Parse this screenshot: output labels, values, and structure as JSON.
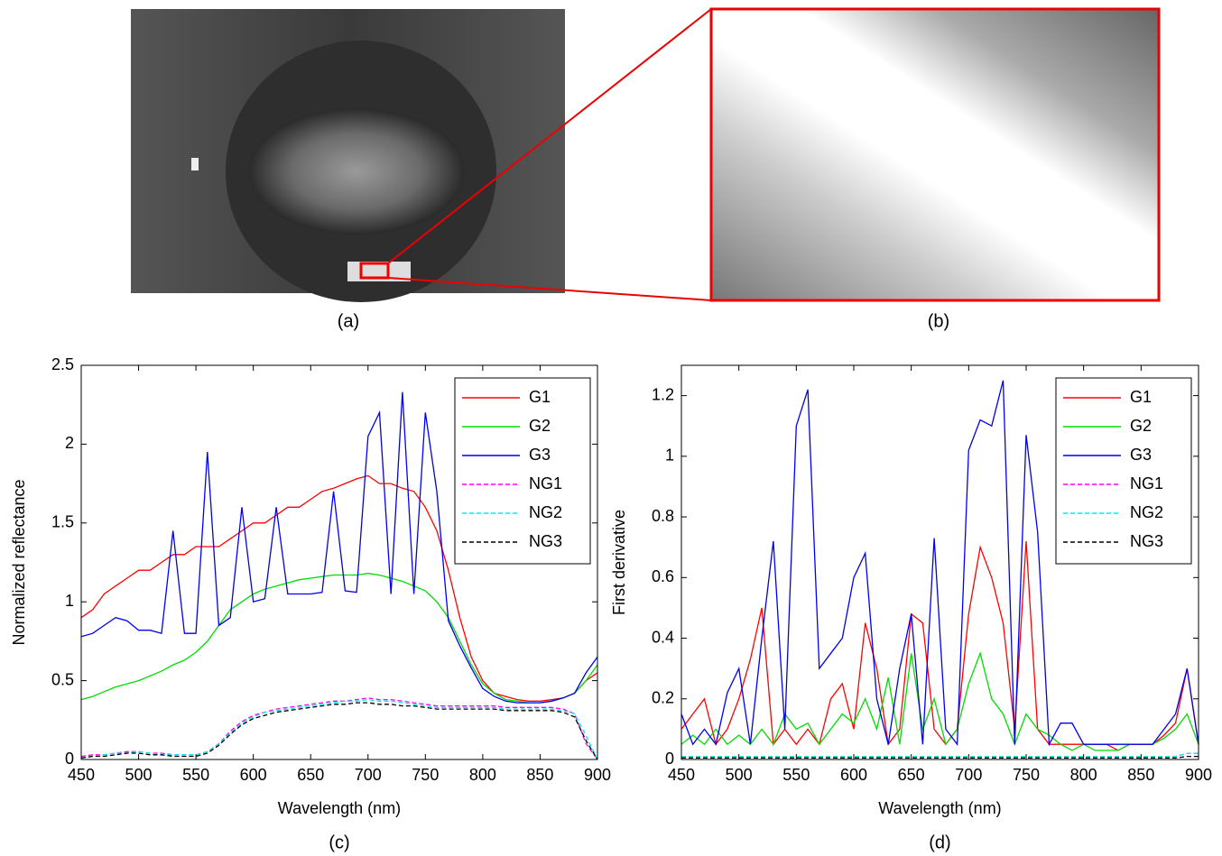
{
  "panels": [
    {
      "label": "(a)"
    },
    {
      "label": "(b)"
    }
  ],
  "chart_data": [
    {
      "type": "line",
      "caption": "(c)",
      "xlabel": "Wavelength (nm)",
      "ylabel": "Normalized reflectance",
      "xlim": [
        450,
        900
      ],
      "ylim": [
        0,
        2.5
      ],
      "xticks": [
        450,
        500,
        550,
        600,
        650,
        700,
        750,
        800,
        850,
        900
      ],
      "yticks": [
        0,
        0.5,
        1,
        1.5,
        2,
        2.5
      ],
      "legend": "upper right",
      "x": [
        450,
        460,
        470,
        480,
        490,
        500,
        510,
        520,
        530,
        540,
        550,
        560,
        570,
        580,
        590,
        600,
        610,
        620,
        630,
        640,
        650,
        660,
        670,
        680,
        690,
        700,
        710,
        720,
        730,
        740,
        750,
        760,
        770,
        780,
        790,
        800,
        810,
        820,
        830,
        840,
        850,
        860,
        870,
        880,
        890,
        900
      ],
      "series": [
        {
          "name": "G1",
          "color": "#ff0000",
          "linestyle": "solid",
          "values": [
            0.9,
            0.95,
            1.05,
            1.1,
            1.15,
            1.2,
            1.2,
            1.25,
            1.3,
            1.3,
            1.35,
            1.35,
            1.35,
            1.4,
            1.45,
            1.5,
            1.5,
            1.55,
            1.6,
            1.6,
            1.65,
            1.7,
            1.72,
            1.75,
            1.78,
            1.8,
            1.75,
            1.75,
            1.72,
            1.7,
            1.6,
            1.45,
            1.2,
            0.9,
            0.65,
            0.5,
            0.42,
            0.4,
            0.38,
            0.37,
            0.37,
            0.38,
            0.39,
            0.42,
            0.5,
            0.55
          ]
        },
        {
          "name": "G2",
          "color": "#00dd00",
          "linestyle": "solid",
          "values": [
            0.38,
            0.4,
            0.43,
            0.46,
            0.48,
            0.5,
            0.53,
            0.56,
            0.6,
            0.63,
            0.68,
            0.75,
            0.85,
            0.95,
            1.0,
            1.05,
            1.08,
            1.1,
            1.12,
            1.14,
            1.15,
            1.16,
            1.17,
            1.17,
            1.17,
            1.18,
            1.17,
            1.15,
            1.13,
            1.1,
            1.07,
            1.0,
            0.9,
            0.75,
            0.6,
            0.48,
            0.42,
            0.38,
            0.37,
            0.36,
            0.36,
            0.37,
            0.39,
            0.42,
            0.5,
            0.6
          ]
        },
        {
          "name": "G3",
          "color": "#0000ee",
          "linestyle": "solid",
          "values": [
            0.78,
            0.8,
            0.85,
            0.9,
            0.88,
            0.82,
            0.82,
            0.8,
            1.45,
            0.8,
            0.8,
            1.95,
            0.85,
            0.9,
            1.6,
            1.0,
            1.02,
            1.6,
            1.05,
            1.05,
            1.05,
            1.06,
            1.7,
            1.07,
            1.06,
            2.05,
            2.2,
            1.05,
            2.33,
            1.05,
            2.2,
            1.7,
            0.88,
            0.72,
            0.58,
            0.45,
            0.4,
            0.37,
            0.36,
            0.36,
            0.36,
            0.37,
            0.39,
            0.42,
            0.55,
            0.65
          ]
        },
        {
          "name": "NG1",
          "color": "#ff00ff",
          "linestyle": "dashed",
          "values": [
            0.02,
            0.03,
            0.03,
            0.04,
            0.05,
            0.05,
            0.04,
            0.04,
            0.03,
            0.03,
            0.03,
            0.05,
            0.1,
            0.18,
            0.24,
            0.28,
            0.3,
            0.32,
            0.33,
            0.34,
            0.35,
            0.36,
            0.37,
            0.37,
            0.38,
            0.39,
            0.38,
            0.38,
            0.37,
            0.36,
            0.35,
            0.34,
            0.34,
            0.34,
            0.34,
            0.34,
            0.34,
            0.33,
            0.33,
            0.33,
            0.33,
            0.33,
            0.32,
            0.29,
            0.1,
            0.0
          ]
        },
        {
          "name": "NG2",
          "color": "#00eeee",
          "linestyle": "dashed",
          "values": [
            0.01,
            0.02,
            0.03,
            0.04,
            0.04,
            0.05,
            0.04,
            0.03,
            0.03,
            0.03,
            0.03,
            0.05,
            0.1,
            0.17,
            0.23,
            0.27,
            0.3,
            0.31,
            0.32,
            0.33,
            0.34,
            0.35,
            0.36,
            0.37,
            0.37,
            0.38,
            0.37,
            0.37,
            0.36,
            0.35,
            0.34,
            0.33,
            0.33,
            0.33,
            0.33,
            0.33,
            0.33,
            0.32,
            0.32,
            0.32,
            0.32,
            0.32,
            0.31,
            0.29,
            0.15,
            0.0
          ]
        },
        {
          "name": "NG3",
          "color": "#000000",
          "linestyle": "dashed",
          "values": [
            0.01,
            0.02,
            0.02,
            0.03,
            0.04,
            0.04,
            0.03,
            0.03,
            0.02,
            0.02,
            0.02,
            0.04,
            0.09,
            0.16,
            0.22,
            0.26,
            0.28,
            0.3,
            0.31,
            0.32,
            0.33,
            0.34,
            0.35,
            0.35,
            0.36,
            0.36,
            0.35,
            0.35,
            0.34,
            0.34,
            0.33,
            0.32,
            0.32,
            0.32,
            0.32,
            0.32,
            0.32,
            0.31,
            0.31,
            0.31,
            0.31,
            0.31,
            0.3,
            0.27,
            0.12,
            0.0
          ]
        }
      ]
    },
    {
      "type": "line",
      "caption": "(d)",
      "xlabel": "Wavelength (nm)",
      "ylabel": "First derivative",
      "xlim": [
        450,
        900
      ],
      "ylim": [
        0,
        1.3
      ],
      "xticks": [
        450,
        500,
        550,
        600,
        650,
        700,
        750,
        800,
        850,
        900
      ],
      "yticks": [
        0,
        0.2,
        0.4,
        0.6,
        0.8,
        1,
        1.2
      ],
      "legend": "upper right",
      "x": [
        450,
        460,
        470,
        480,
        490,
        500,
        510,
        520,
        530,
        540,
        550,
        560,
        570,
        580,
        590,
        600,
        610,
        620,
        630,
        640,
        650,
        660,
        670,
        680,
        690,
        700,
        710,
        720,
        730,
        740,
        750,
        760,
        770,
        780,
        790,
        800,
        810,
        820,
        830,
        840,
        850,
        860,
        870,
        880,
        890,
        900
      ],
      "series": [
        {
          "name": "G1",
          "color": "#ff0000",
          "linestyle": "solid",
          "values": [
            0.1,
            0.15,
            0.2,
            0.05,
            0.1,
            0.2,
            0.33,
            0.5,
            0.05,
            0.1,
            0.05,
            0.1,
            0.05,
            0.2,
            0.25,
            0.1,
            0.45,
            0.3,
            0.05,
            0.1,
            0.48,
            0.45,
            0.1,
            0.05,
            0.1,
            0.48,
            0.7,
            0.6,
            0.45,
            0.1,
            0.72,
            0.1,
            0.05,
            0.05,
            0.05,
            0.05,
            0.05,
            0.05,
            0.03,
            0.05,
            0.05,
            0.05,
            0.08,
            0.12,
            0.3,
            0.05
          ]
        },
        {
          "name": "G2",
          "color": "#00dd00",
          "linestyle": "solid",
          "values": [
            0.05,
            0.08,
            0.05,
            0.1,
            0.05,
            0.08,
            0.05,
            0.1,
            0.05,
            0.15,
            0.1,
            0.12,
            0.05,
            0.1,
            0.15,
            0.12,
            0.2,
            0.1,
            0.27,
            0.05,
            0.35,
            0.1,
            0.2,
            0.05,
            0.1,
            0.25,
            0.35,
            0.2,
            0.15,
            0.05,
            0.15,
            0.1,
            0.08,
            0.05,
            0.03,
            0.05,
            0.03,
            0.03,
            0.03,
            0.05,
            0.05,
            0.05,
            0.07,
            0.1,
            0.15,
            0.05
          ]
        },
        {
          "name": "G3",
          "color": "#0000ee",
          "linestyle": "solid",
          "values": [
            0.15,
            0.05,
            0.1,
            0.05,
            0.22,
            0.3,
            0.05,
            0.4,
            0.72,
            0.1,
            1.1,
            1.22,
            0.3,
            0.35,
            0.4,
            0.6,
            0.68,
            0.2,
            0.05,
            0.3,
            0.48,
            0.05,
            0.73,
            0.1,
            0.05,
            1.02,
            1.12,
            1.1,
            1.25,
            0.05,
            1.07,
            0.75,
            0.05,
            0.12,
            0.12,
            0.05,
            0.05,
            0.05,
            0.05,
            0.05,
            0.05,
            0.05,
            0.1,
            0.15,
            0.3,
            0.05
          ]
        },
        {
          "name": "NG1",
          "color": "#ff00ff",
          "linestyle": "dashed",
          "values": [
            0.01,
            0.01,
            0.01,
            0.01,
            0.01,
            0.01,
            0.01,
            0.01,
            0.01,
            0.01,
            0.01,
            0.01,
            0.01,
            0.01,
            0.01,
            0.01,
            0.01,
            0.01,
            0.01,
            0.01,
            0.01,
            0.01,
            0.01,
            0.01,
            0.01,
            0.01,
            0.01,
            0.01,
            0.01,
            0.01,
            0.01,
            0.01,
            0.01,
            0.01,
            0.01,
            0.01,
            0.01,
            0.01,
            0.01,
            0.01,
            0.01,
            0.01,
            0.01,
            0.01,
            0.02,
            0.02
          ]
        },
        {
          "name": "NG2",
          "color": "#00eeee",
          "linestyle": "dashed",
          "values": [
            0.01,
            0.01,
            0.01,
            0.01,
            0.01,
            0.01,
            0.01,
            0.01,
            0.01,
            0.01,
            0.01,
            0.01,
            0.01,
            0.01,
            0.01,
            0.01,
            0.01,
            0.01,
            0.01,
            0.01,
            0.01,
            0.01,
            0.01,
            0.01,
            0.01,
            0.01,
            0.01,
            0.01,
            0.01,
            0.01,
            0.01,
            0.01,
            0.01,
            0.01,
            0.01,
            0.01,
            0.01,
            0.01,
            0.01,
            0.01,
            0.01,
            0.01,
            0.01,
            0.01,
            0.02,
            0.02
          ]
        },
        {
          "name": "NG3",
          "color": "#000000",
          "linestyle": "dashed",
          "values": [
            0.005,
            0.005,
            0.005,
            0.005,
            0.005,
            0.005,
            0.005,
            0.005,
            0.005,
            0.005,
            0.005,
            0.005,
            0.005,
            0.005,
            0.005,
            0.005,
            0.005,
            0.005,
            0.005,
            0.005,
            0.005,
            0.005,
            0.005,
            0.005,
            0.005,
            0.005,
            0.005,
            0.005,
            0.005,
            0.005,
            0.005,
            0.005,
            0.005,
            0.005,
            0.005,
            0.005,
            0.005,
            0.005,
            0.005,
            0.005,
            0.005,
            0.005,
            0.005,
            0.005,
            0.01,
            0.01
          ]
        }
      ]
    }
  ]
}
